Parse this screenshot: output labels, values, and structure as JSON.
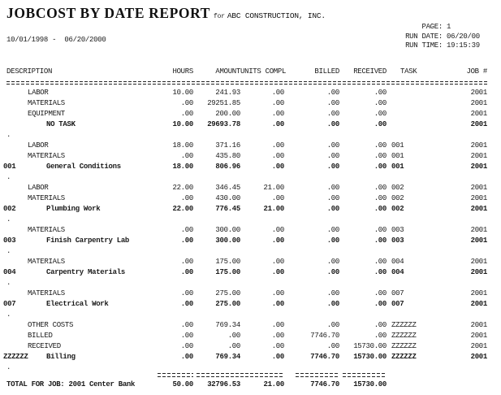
{
  "header": {
    "title": "JOBCOST BY DATE REPORT",
    "title_for": "for",
    "company": "ABC CONSTRUCTION, INC.",
    "date_range": "10/01/1998 -  06/20/2000",
    "page_label": "PAGE:",
    "page_value": "1",
    "run_date_label": "RUN DATE:",
    "run_date_value": "06/20/00",
    "run_time_label": "RUN TIME:",
    "run_time_value": "19:15:39"
  },
  "table": {
    "columns": [
      "DESCRIPTION",
      "HOURS",
      "AMOUNT",
      "UNITS COMPL",
      "BILLED",
      "RECEIVED",
      "TASK",
      "JOB #"
    ],
    "dot_char": ".",
    "rows": [
      {
        "type": "detail",
        "code": "",
        "desc": "LABOR",
        "hours": "10.00",
        "amount": "241.93",
        "units": ".00",
        "billed": ".00",
        "received": ".00",
        "task": "",
        "job": "2001"
      },
      {
        "type": "detail",
        "code": "",
        "desc": "MATERIALS",
        "hours": ".00",
        "amount": "29251.85",
        "units": ".00",
        "billed": ".00",
        "received": ".00",
        "task": "",
        "job": "2001"
      },
      {
        "type": "detail",
        "code": "",
        "desc": "EQUIPMENT",
        "hours": ".00",
        "amount": "200.00",
        "units": ".00",
        "billed": ".00",
        "received": ".00",
        "task": "",
        "job": "2001"
      },
      {
        "type": "summary",
        "code": "",
        "desc": "NO TASK",
        "hours": "10.00",
        "amount": "29693.78",
        "units": ".00",
        "billed": ".00",
        "received": ".00",
        "task": "",
        "job": "2001"
      },
      {
        "type": "dot"
      },
      {
        "type": "detail",
        "code": "",
        "desc": "LABOR",
        "hours": "18.00",
        "amount": "371.16",
        "units": ".00",
        "billed": ".00",
        "received": ".00",
        "task": "001",
        "job": "2001"
      },
      {
        "type": "detail",
        "code": "",
        "desc": "MATERIALS",
        "hours": ".00",
        "amount": "435.80",
        "units": ".00",
        "billed": ".00",
        "received": ".00",
        "task": "001",
        "job": "2001"
      },
      {
        "type": "summary",
        "code": "001",
        "desc": "General Conditions",
        "hours": "18.00",
        "amount": "806.96",
        "units": ".00",
        "billed": ".00",
        "received": ".00",
        "task": "001",
        "job": "2001"
      },
      {
        "type": "dot"
      },
      {
        "type": "detail",
        "code": "",
        "desc": "LABOR",
        "hours": "22.00",
        "amount": "346.45",
        "units": "21.00",
        "billed": ".00",
        "received": ".00",
        "task": "002",
        "job": "2001"
      },
      {
        "type": "detail",
        "code": "",
        "desc": "MATERIALS",
        "hours": ".00",
        "amount": "430.00",
        "units": ".00",
        "billed": ".00",
        "received": ".00",
        "task": "002",
        "job": "2001"
      },
      {
        "type": "summary",
        "code": "002",
        "desc": "Plumbing Work",
        "hours": "22.00",
        "amount": "776.45",
        "units": "21.00",
        "billed": ".00",
        "received": ".00",
        "task": "002",
        "job": "2001"
      },
      {
        "type": "dot"
      },
      {
        "type": "detail",
        "code": "",
        "desc": "MATERIALS",
        "hours": ".00",
        "amount": "300.00",
        "units": ".00",
        "billed": ".00",
        "received": ".00",
        "task": "003",
        "job": "2001"
      },
      {
        "type": "summary",
        "code": "003",
        "desc": "Finish Carpentry Lab",
        "hours": ".00",
        "amount": "300.00",
        "units": ".00",
        "billed": ".00",
        "received": ".00",
        "task": "003",
        "job": "2001"
      },
      {
        "type": "dot"
      },
      {
        "type": "detail",
        "code": "",
        "desc": "MATERIALS",
        "hours": ".00",
        "amount": "175.00",
        "units": ".00",
        "billed": ".00",
        "received": ".00",
        "task": "004",
        "job": "2001"
      },
      {
        "type": "summary",
        "code": "004",
        "desc": "Carpentry Materials",
        "hours": ".00",
        "amount": "175.00",
        "units": ".00",
        "billed": ".00",
        "received": ".00",
        "task": "004",
        "job": "2001"
      },
      {
        "type": "dot"
      },
      {
        "type": "detail",
        "code": "",
        "desc": "MATERIALS",
        "hours": ".00",
        "amount": "275.00",
        "units": ".00",
        "billed": ".00",
        "received": ".00",
        "task": "007",
        "job": "2001"
      },
      {
        "type": "summary",
        "code": "007",
        "desc": "Electrical Work",
        "hours": ".00",
        "amount": "275.00",
        "units": ".00",
        "billed": ".00",
        "received": ".00",
        "task": "007",
        "job": "2001"
      },
      {
        "type": "dot"
      },
      {
        "type": "detail",
        "code": "",
        "desc": "OTHER COSTS",
        "hours": ".00",
        "amount": "769.34",
        "units": ".00",
        "billed": ".00",
        "received": ".00",
        "task": "ZZZZZZ",
        "job": "2001"
      },
      {
        "type": "detail",
        "code": "",
        "desc": "BILLED",
        "hours": ".00",
        "amount": ".00",
        "units": ".00",
        "billed": "7746.70",
        "received": ".00",
        "task": "ZZZZZZ",
        "job": "2001"
      },
      {
        "type": "detail",
        "code": "",
        "desc": "RECEIVED",
        "hours": ".00",
        "amount": ".00",
        "units": ".00",
        "billed": ".00",
        "received": "15730.00",
        "task": "ZZZZZZ",
        "job": "2001"
      },
      {
        "type": "summary",
        "code": "ZZZZZZ",
        "desc": "Billing",
        "hours": ".00",
        "amount": "769.34",
        "units": ".00",
        "billed": "7746.70",
        "received": "15730.00",
        "task": "ZZZZZZ",
        "job": "2001"
      },
      {
        "type": "dot"
      }
    ],
    "total": {
      "label": "TOTAL FOR JOB: 2001 Center Bank",
      "hours": "50.00",
      "amount": "32796.53",
      "units": "21.00",
      "billed": "7746.70",
      "received": "15730.00"
    }
  }
}
